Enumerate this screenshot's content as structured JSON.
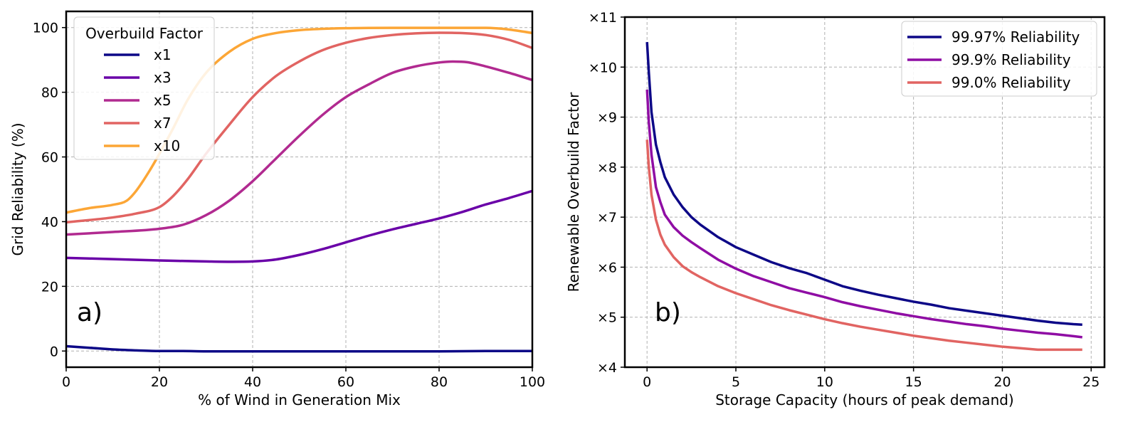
{
  "chart_data": [
    {
      "type": "line",
      "panel_label": "a)",
      "xlabel": "% of Wind in Generation Mix",
      "ylabel": "Grid Reliability (%)",
      "xlim": [
        0,
        100
      ],
      "ylim": [
        -5,
        105
      ],
      "xticks": [
        0,
        20,
        40,
        60,
        80,
        100
      ],
      "yticks": [
        0,
        20,
        40,
        60,
        80,
        100
      ],
      "grid": true,
      "legend": {
        "title": "Overbuild Factor",
        "position": "top-left"
      },
      "series": [
        {
          "name": "x1",
          "color": "#0d0887",
          "x": [
            0,
            5,
            10,
            15,
            20,
            25,
            30,
            40,
            50,
            60,
            70,
            80,
            90,
            100
          ],
          "y": [
            1.5,
            1.0,
            0.5,
            0.2,
            0.0,
            0.0,
            -0.1,
            -0.1,
            -0.1,
            -0.1,
            -0.1,
            -0.1,
            0.0,
            0.0
          ]
        },
        {
          "name": "x3",
          "color": "#6a00a8",
          "x": [
            0,
            10,
            20,
            30,
            35,
            40,
            45,
            50,
            55,
            60,
            65,
            70,
            75,
            80,
            85,
            90,
            95,
            100
          ],
          "y": [
            28.8,
            28.4,
            28.0,
            27.7,
            27.6,
            27.7,
            28.3,
            29.7,
            31.5,
            33.6,
            35.7,
            37.6,
            39.3,
            41.0,
            43.0,
            45.3,
            47.3,
            49.5
          ]
        },
        {
          "name": "x5",
          "color": "#b12a90",
          "x": [
            0,
            10,
            20,
            25,
            30,
            35,
            40,
            45,
            50,
            55,
            60,
            65,
            70,
            75,
            80,
            83,
            86,
            90,
            95,
            100
          ],
          "y": [
            36.0,
            36.8,
            37.8,
            39.0,
            42.0,
            46.5,
            52.5,
            59.5,
            66.5,
            73.0,
            78.5,
            82.5,
            86.0,
            88.0,
            89.2,
            89.5,
            89.3,
            88.0,
            86.0,
            83.8
          ]
        },
        {
          "name": "x7",
          "color": "#e16462",
          "x": [
            0,
            10,
            15,
            20,
            23,
            26,
            30,
            35,
            40,
            45,
            50,
            55,
            60,
            65,
            70,
            75,
            80,
            85,
            90,
            95,
            100
          ],
          "y": [
            39.8,
            41.3,
            42.5,
            44.5,
            48.0,
            53.0,
            61.0,
            70.0,
            78.5,
            85.0,
            89.5,
            93.0,
            95.3,
            96.8,
            97.7,
            98.2,
            98.4,
            98.3,
            97.7,
            96.2,
            93.7
          ]
        },
        {
          "name": "x10",
          "color": "#fca636",
          "x": [
            0,
            5,
            10,
            13,
            15,
            18,
            20,
            23,
            26,
            30,
            35,
            40,
            45,
            50,
            55,
            60,
            70,
            80,
            90,
            95,
            100
          ],
          "y": [
            42.8,
            44.2,
            45.2,
            46.5,
            49.5,
            56.0,
            61.0,
            69.0,
            77.5,
            86.0,
            92.5,
            96.5,
            98.3,
            99.2,
            99.6,
            99.8,
            99.9,
            99.9,
            99.9,
            99.4,
            98.3
          ]
        }
      ]
    },
    {
      "type": "line",
      "panel_label": "b)",
      "xlabel": "Storage Capacity (hours of peak demand)",
      "ylabel": "Renewable Overbuild Factor",
      "xlim": [
        -1.25,
        25.75
      ],
      "ylim": [
        4,
        11
      ],
      "xticks": [
        0,
        5,
        10,
        15,
        20,
        25
      ],
      "xtick_labels": [
        "0",
        "5",
        "10",
        "15",
        "20",
        "25"
      ],
      "yticks": [
        4,
        5,
        6,
        7,
        8,
        9,
        10,
        11
      ],
      "ytick_labels": [
        "×4",
        "×5",
        "×6",
        "×7",
        "×8",
        "×9",
        "×10",
        "×11"
      ],
      "grid": true,
      "legend": {
        "title": "",
        "position": "top-right"
      },
      "series": [
        {
          "name": "99.97% Reliability",
          "color": "#0d0887",
          "x": [
            0,
            0.1,
            0.25,
            0.5,
            0.75,
            1,
            1.5,
            2,
            2.5,
            3,
            4,
            5,
            6,
            7,
            8,
            9,
            10,
            11,
            12,
            13,
            14,
            15,
            16,
            17,
            18,
            19,
            20,
            21,
            22,
            23,
            24,
            24.5
          ],
          "y": [
            10.5,
            9.9,
            9.1,
            8.45,
            8.1,
            7.8,
            7.45,
            7.2,
            7.0,
            6.85,
            6.6,
            6.4,
            6.25,
            6.1,
            5.98,
            5.88,
            5.75,
            5.62,
            5.53,
            5.45,
            5.38,
            5.31,
            5.25,
            5.18,
            5.13,
            5.08,
            5.03,
            4.98,
            4.93,
            4.89,
            4.86,
            4.85
          ]
        },
        {
          "name": "99.9% Reliability",
          "color": "#8f0da4",
          "x": [
            0,
            0.1,
            0.25,
            0.5,
            0.75,
            1,
            1.5,
            2,
            2.5,
            3,
            4,
            5,
            6,
            7,
            8,
            9,
            10,
            11,
            12,
            13,
            14,
            15,
            16,
            17,
            18,
            19,
            20,
            21,
            22,
            23,
            24,
            24.5
          ],
          "y": [
            9.55,
            8.9,
            8.25,
            7.6,
            7.3,
            7.05,
            6.8,
            6.63,
            6.5,
            6.38,
            6.15,
            5.97,
            5.82,
            5.7,
            5.58,
            5.49,
            5.4,
            5.3,
            5.22,
            5.15,
            5.08,
            5.02,
            4.96,
            4.91,
            4.86,
            4.82,
            4.77,
            4.73,
            4.69,
            4.66,
            4.62,
            4.6
          ]
        },
        {
          "name": "99.0% Reliability",
          "color": "#e16462",
          "x": [
            0,
            0.1,
            0.25,
            0.5,
            0.75,
            1,
            1.5,
            2,
            2.5,
            3,
            4,
            5,
            6,
            7,
            8,
            9,
            10,
            11,
            12,
            13,
            14,
            15,
            16,
            17,
            18,
            19,
            20,
            21,
            22,
            23,
            24,
            24.5
          ],
          "y": [
            8.55,
            8.0,
            7.45,
            6.95,
            6.65,
            6.45,
            6.2,
            6.02,
            5.9,
            5.8,
            5.62,
            5.48,
            5.36,
            5.24,
            5.14,
            5.05,
            4.96,
            4.88,
            4.81,
            4.75,
            4.69,
            4.63,
            4.58,
            4.53,
            4.49,
            4.45,
            4.41,
            4.38,
            4.35,
            4.35,
            4.35,
            4.35
          ]
        }
      ]
    }
  ]
}
